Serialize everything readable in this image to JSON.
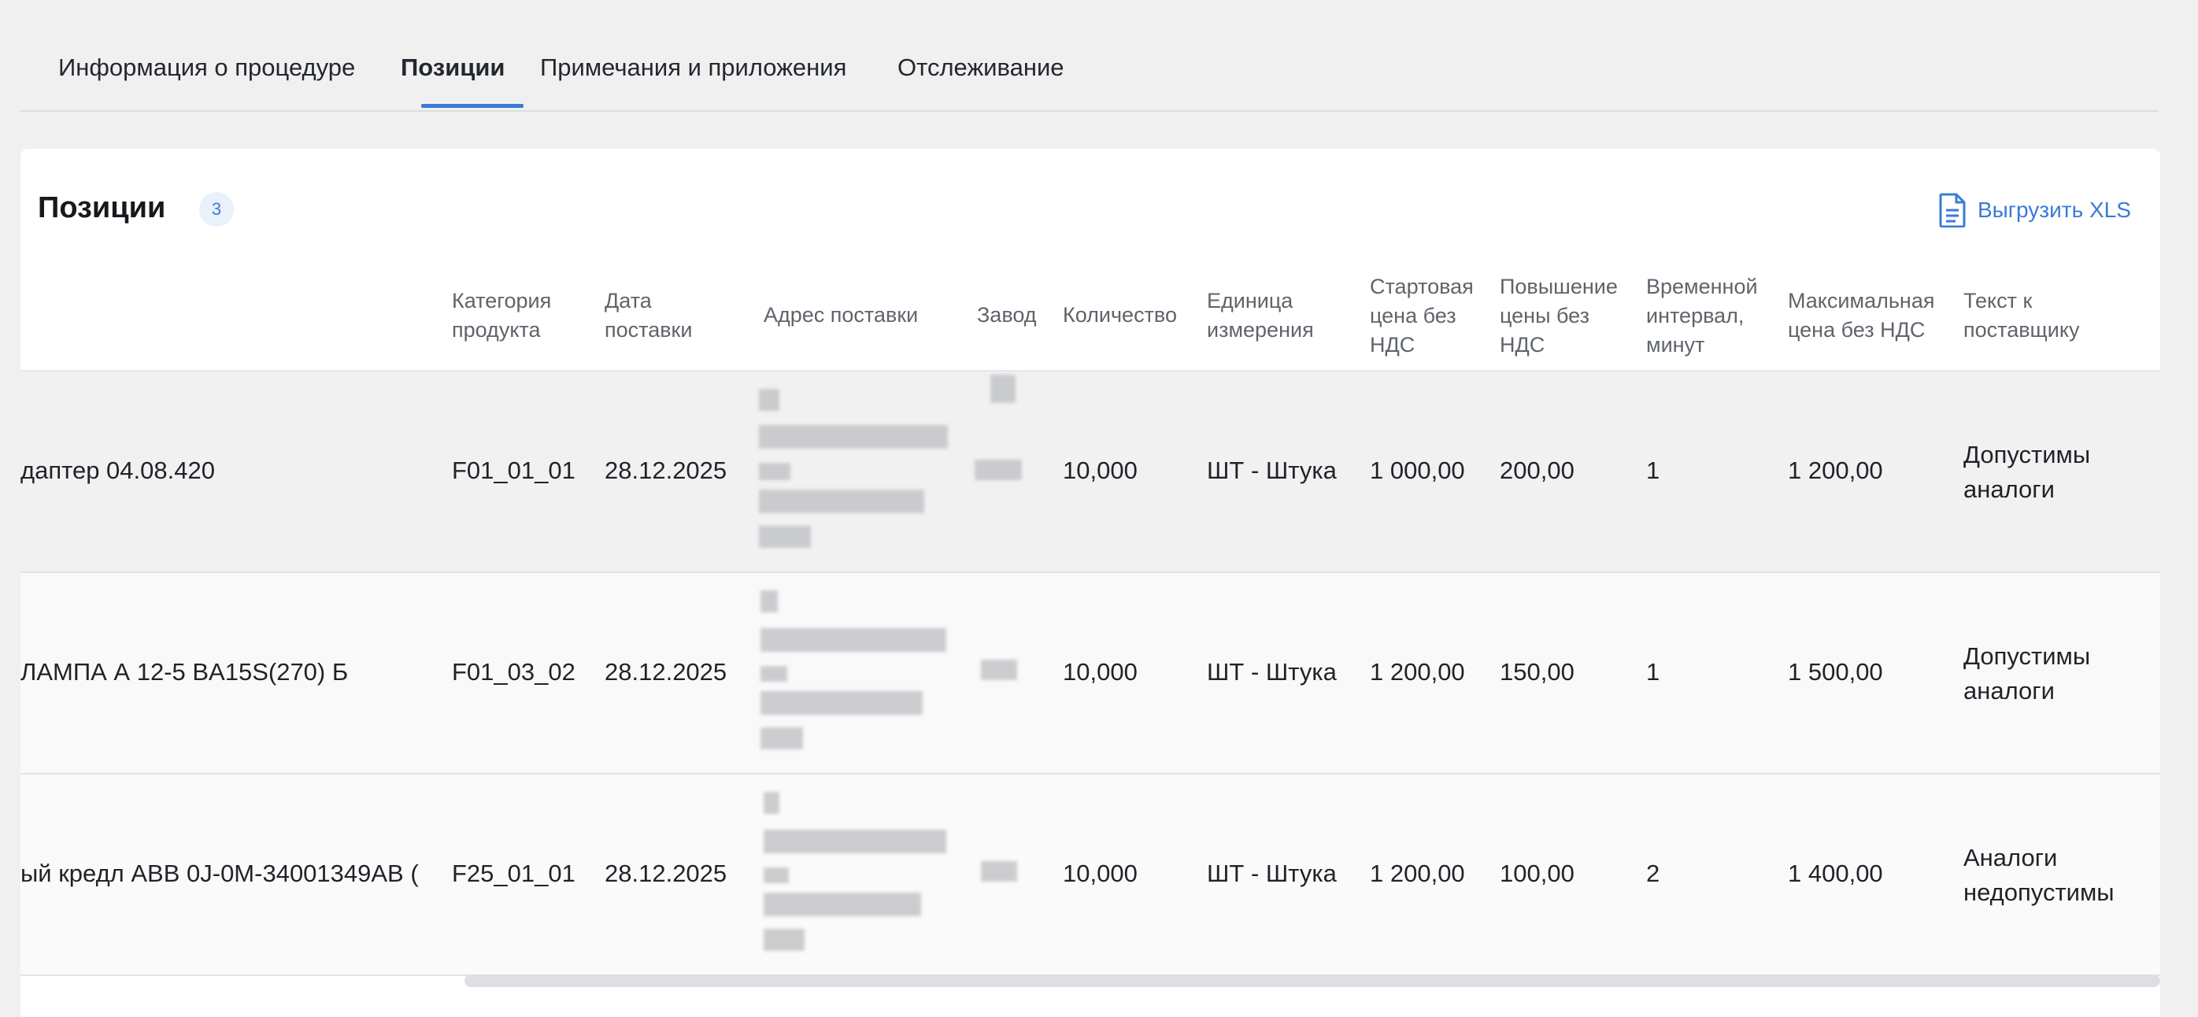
{
  "tabs": [
    {
      "label": "Информация о процедуре",
      "active": false
    },
    {
      "label": "Позиции",
      "active": true
    },
    {
      "label": "Примечания и приложения",
      "active": false
    },
    {
      "label": "Отслеживание",
      "active": false
    }
  ],
  "section": {
    "title": "Позиции",
    "count": "3",
    "export_label": "Выгрузить XLS",
    "export_icon": "document-icon"
  },
  "columns": {
    "category": "Категория\nпродукта",
    "date": "Дата\nпоставки",
    "address": "Адрес поставки",
    "plant": "Завод",
    "quantity": "Количество",
    "unit": "Единица\nизмерения",
    "start_price": "Стартовая\nцена без\nНДС",
    "increase": "Повышение\nцены без\nНДС",
    "interval": "Временной\nинтервал,\nминут",
    "max_price": "Максимальная\nцена без НДС",
    "supplier_text": "Текст к\nпоставщику"
  },
  "rows": [
    {
      "name": "даптер 04.08.420",
      "category": "F01_01_01",
      "date": "28.12.2025",
      "quantity": "10,000",
      "unit": "ШТ - Штука",
      "start_price": "1 000,00",
      "increase": "200,00",
      "interval": "1",
      "max_price": "1 200,00",
      "supplier_text": "Допустимы\nаналоги"
    },
    {
      "name": "ЛАМПА А 12-5 BA15S(270) Б",
      "category": "F01_03_02",
      "date": "28.12.2025",
      "quantity": "10,000",
      "unit": "ШТ - Штука",
      "start_price": "1 200,00",
      "increase": "150,00",
      "interval": "1",
      "max_price": "1 500,00",
      "supplier_text": "Допустимы\nаналоги"
    },
    {
      "name": "ый кредл ABB 0J-0M-34001349AB (",
      "category": "F25_01_01",
      "date": "28.12.2025",
      "quantity": "10,000",
      "unit": "ШТ - Штука",
      "start_price": "1 200,00",
      "increase": "100,00",
      "interval": "2",
      "max_price": "1 400,00",
      "supplier_text": "Аналоги\nнедопустимы"
    }
  ],
  "colors": {
    "accent": "#3a7bd5",
    "background": "#f0f0f1",
    "card": "#ffffff"
  }
}
